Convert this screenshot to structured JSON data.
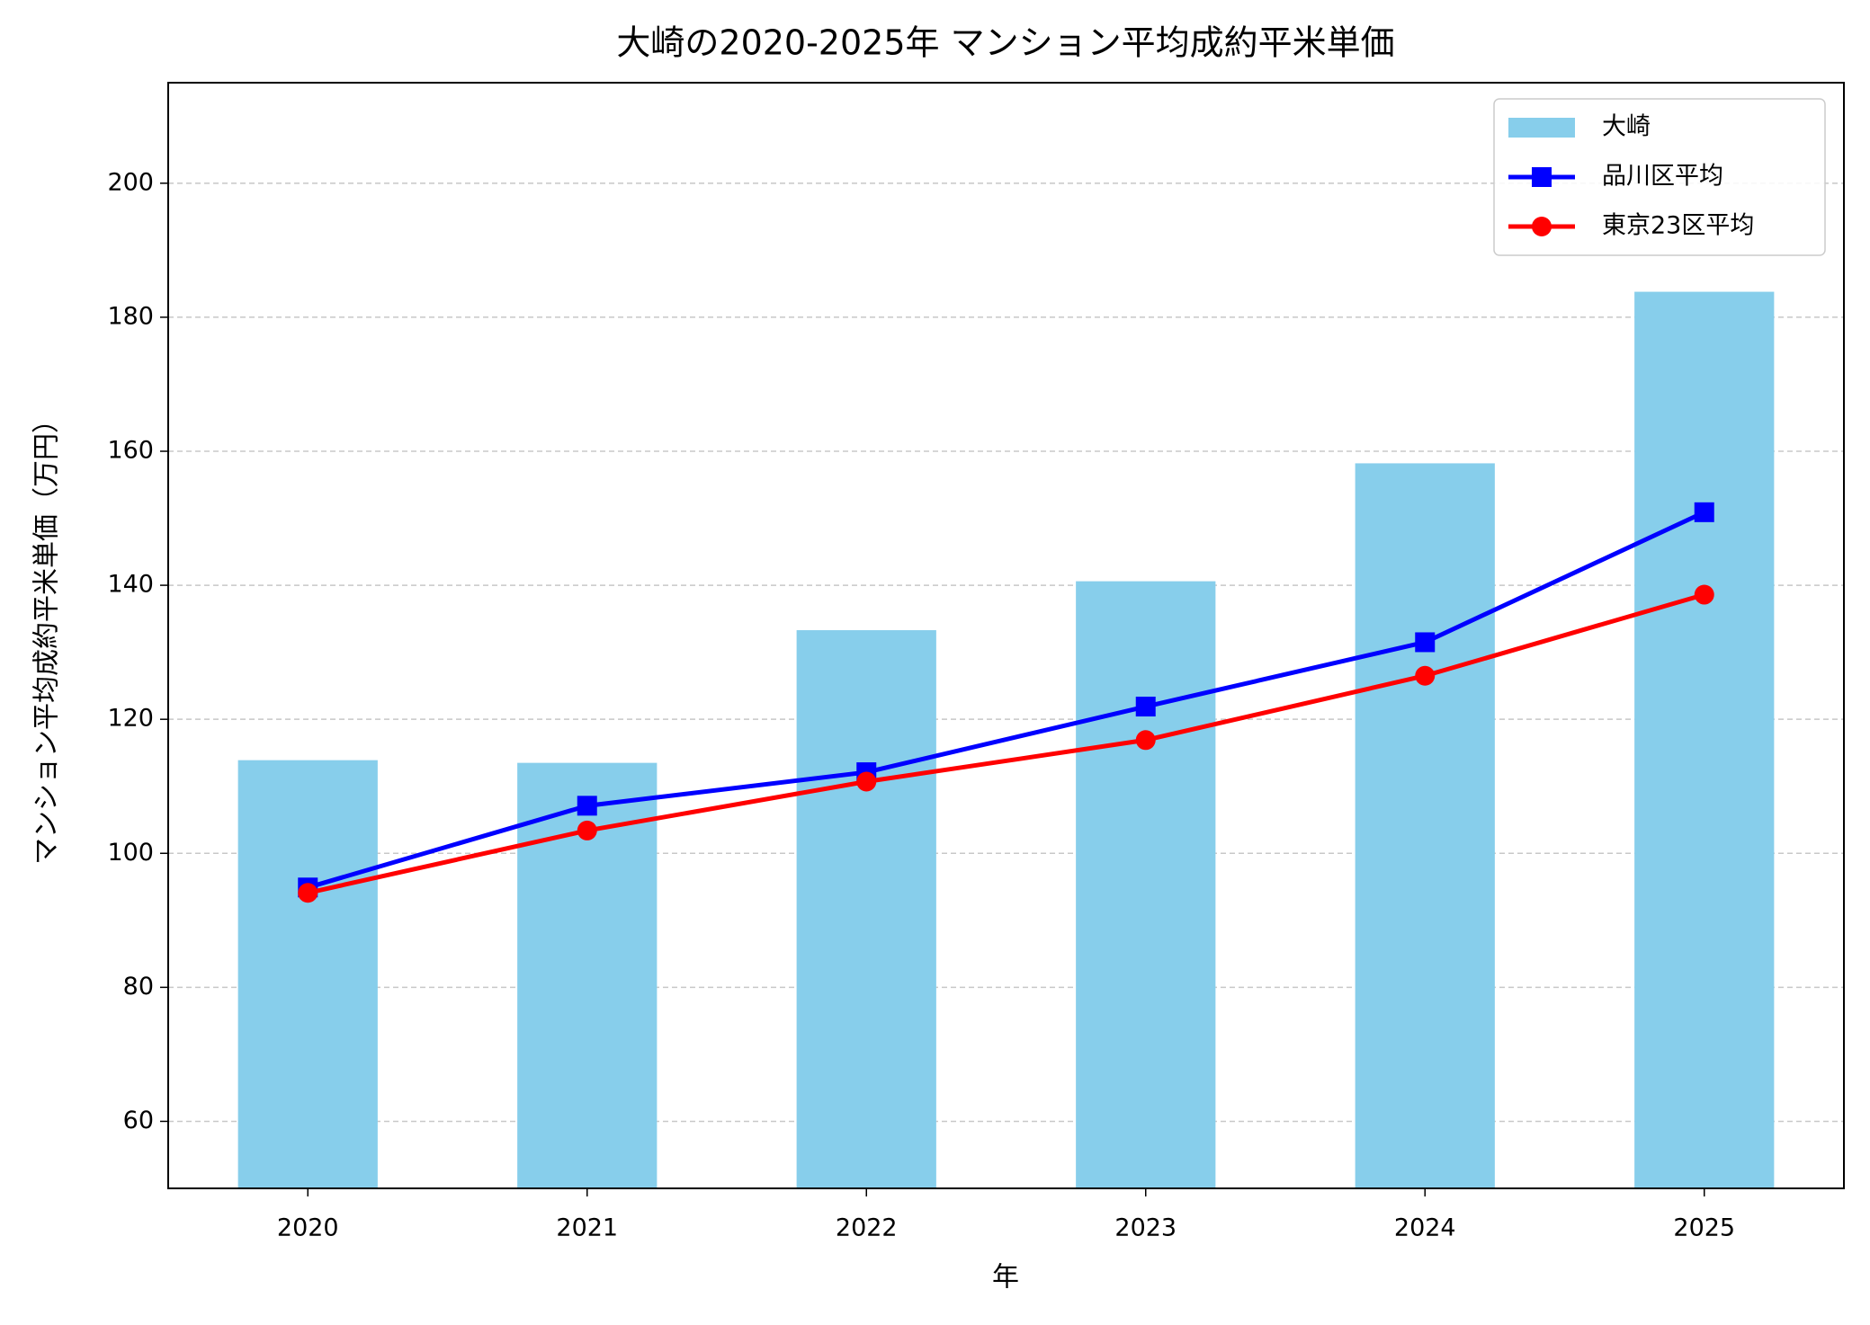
{
  "chart_data": {
    "type": "bar-line",
    "title": "大崎の2020-2025年 マンション平均成約平米単価",
    "x_label": "年",
    "y_label": "マンション平均成約平米単価（万円）",
    "categories": [
      "2020",
      "2021",
      "2022",
      "2023",
      "2024",
      "2025"
    ],
    "series": [
      {
        "name": "大崎",
        "type": "bar",
        "color": "#87ceeb",
        "values": [
          113.9,
          113.5,
          133.3,
          140.6,
          158.2,
          183.8
        ]
      },
      {
        "name": "品川区平均",
        "type": "line",
        "marker": "square",
        "color": "#0000ff",
        "values": [
          94.9,
          107.1,
          112.1,
          121.9,
          131.5,
          150.9
        ]
      },
      {
        "name": "東京23区平均",
        "type": "line",
        "marker": "circle",
        "color": "#ff0000",
        "values": [
          94.1,
          103.4,
          110.7,
          116.9,
          126.5,
          138.6
        ]
      }
    ],
    "ylim": [
      50,
      215
    ],
    "yticks": [
      60,
      80,
      100,
      120,
      140,
      160,
      180,
      200
    ],
    "grid": true,
    "legend": "upper-right"
  }
}
